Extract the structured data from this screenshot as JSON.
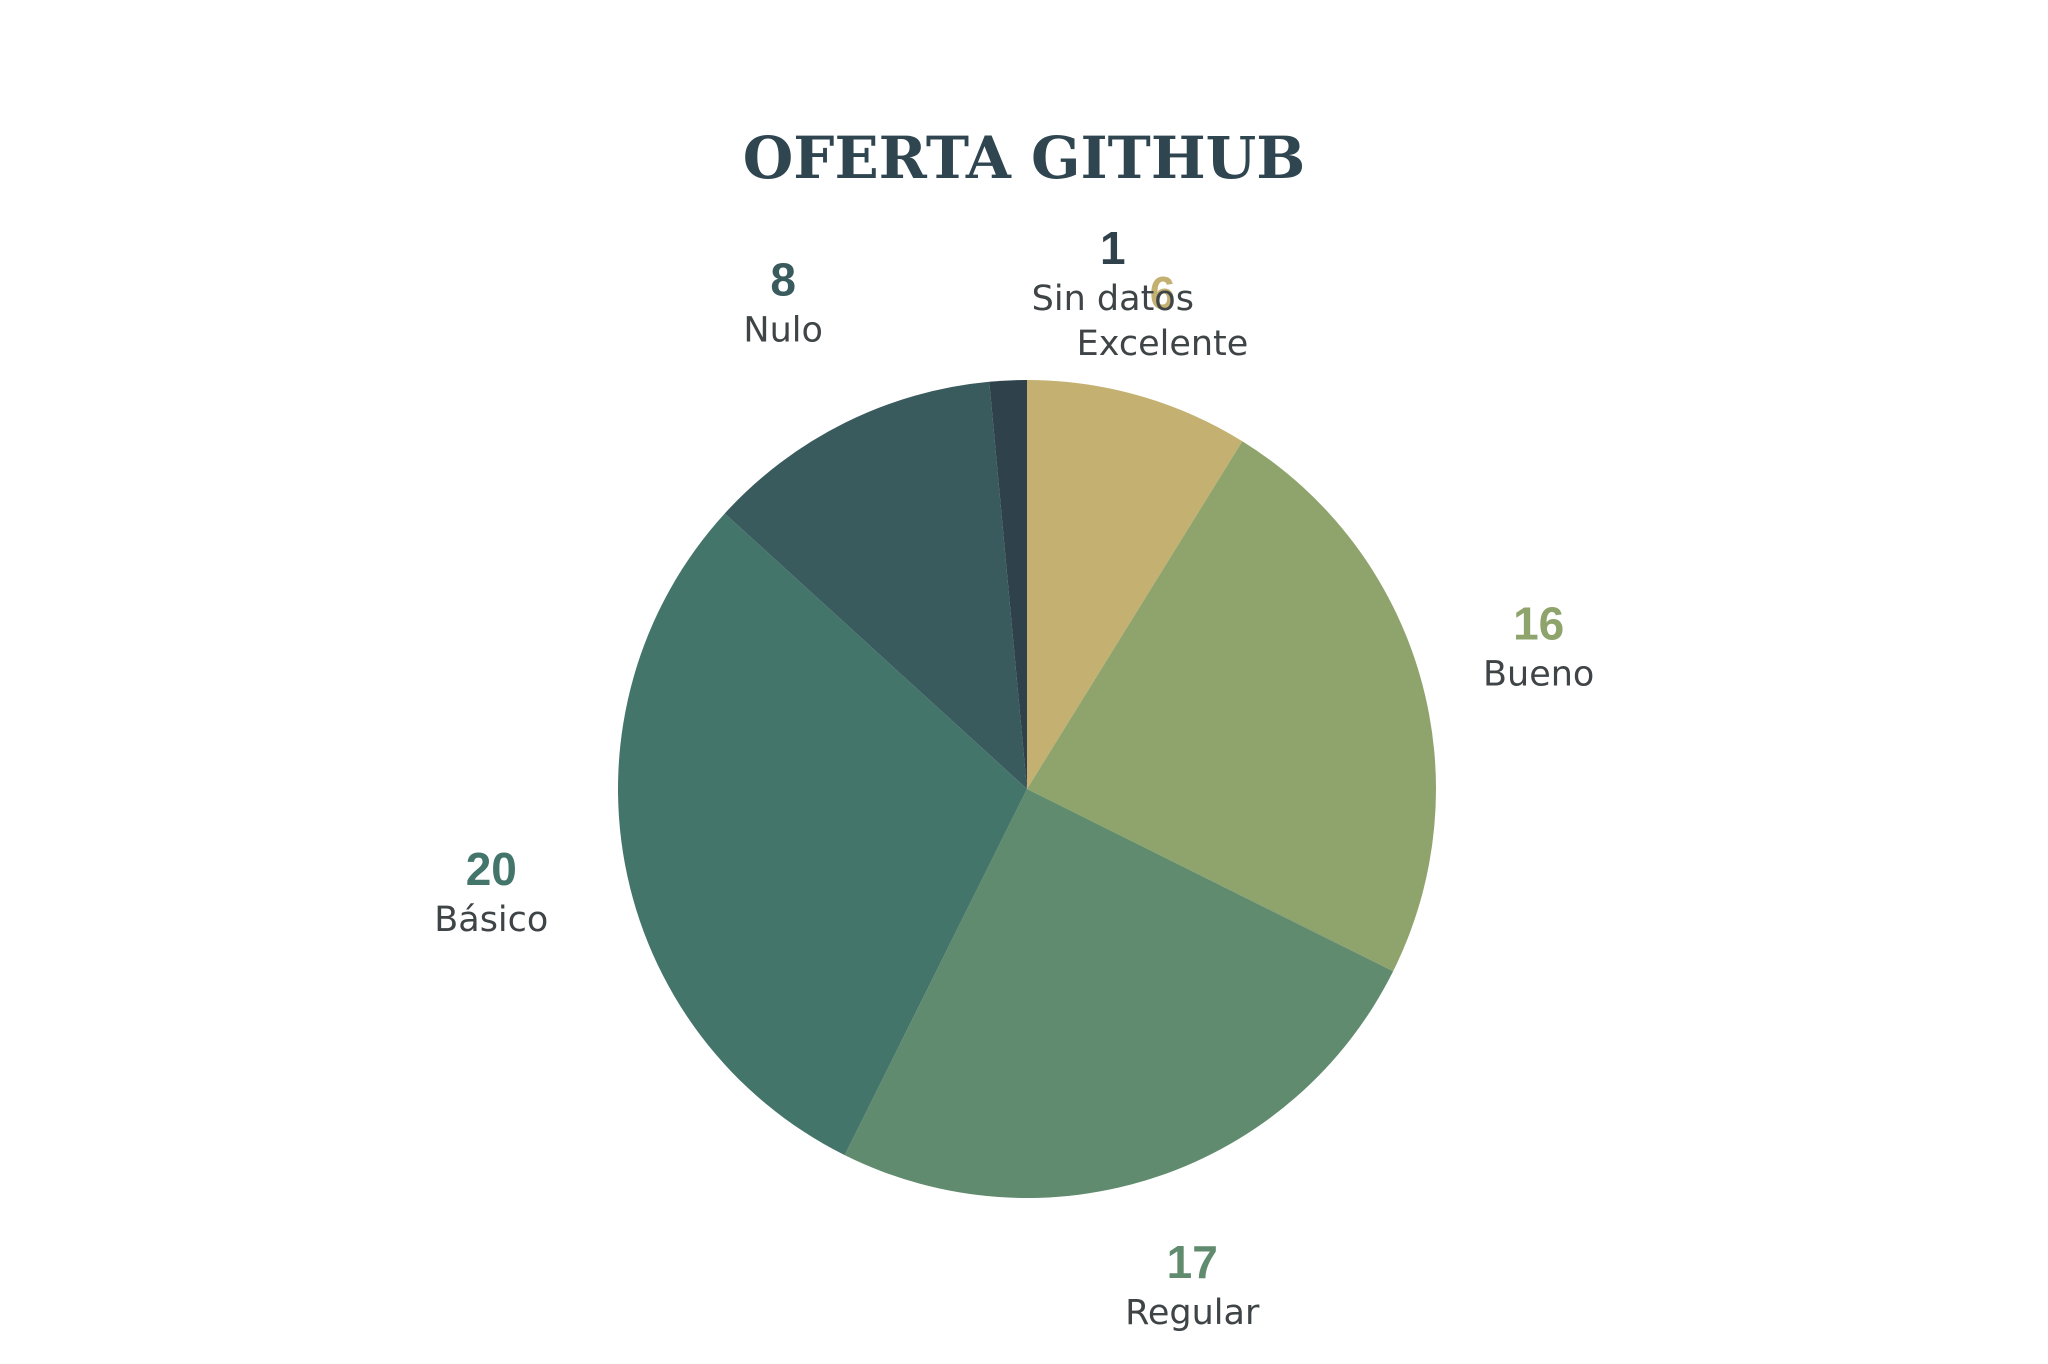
{
  "chart_data": {
    "type": "pie",
    "title": "OFERTA GITHUB",
    "start_angle_deg": 0,
    "direction": "clockwise",
    "slices": [
      {
        "label": "Excelente",
        "value": 6,
        "color": "#c4b172"
      },
      {
        "label": "Bueno",
        "value": 16,
        "color": "#8ea46c"
      },
      {
        "label": "Regular",
        "value": 17,
        "color": "#608b6e"
      },
      {
        "label": "Básico",
        "value": 20,
        "color": "#44756a"
      },
      {
        "label": "Nulo",
        "value": 8,
        "color": "#3a5b5e"
      },
      {
        "label": "Sin datos",
        "value": 1,
        "color": "#2f424b"
      }
    ],
    "legend": "none",
    "data_labels": "outside"
  }
}
